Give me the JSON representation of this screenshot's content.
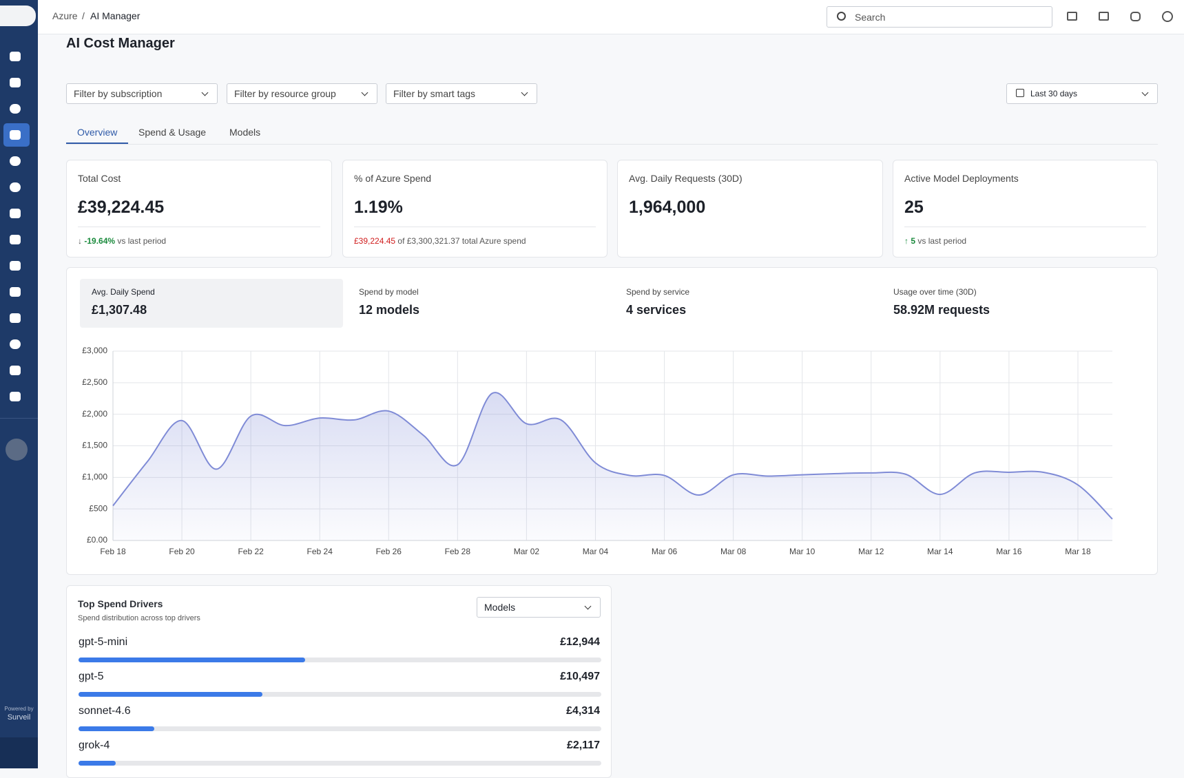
{
  "header": {
    "breadcrumb_root": "Azure",
    "breadcrumb_sep": "/",
    "breadcrumb_current": "AI Manager",
    "search_placeholder": "Search"
  },
  "sidebar": {
    "powered_by": "Powered by",
    "brand": "Surveil"
  },
  "page_title": "AI Cost Manager",
  "filters": [
    "Filter by subscription",
    "Filter by resource group",
    "Filter by smart tags"
  ],
  "date_range": "Last 30 days",
  "tabs": [
    "Overview",
    "Spend & Usage",
    "Models"
  ],
  "kpis": [
    {
      "label": "Total Cost",
      "value": "£39,224.45",
      "change": "-19.64%",
      "note": "vs last period"
    },
    {
      "label": "% of Azure Spend",
      "value": "1.19%",
      "change": "£39,224.45",
      "note": "of £3,300,321.37 total Azure spend"
    },
    {
      "label": "Avg. Daily Requests (30D)",
      "value": "1,964,000"
    },
    {
      "label": "Active Model Deployments",
      "value": "25",
      "change": "5",
      "note": "vs last period"
    }
  ],
  "summary": [
    {
      "label": "Avg. Daily Spend",
      "value": "£1,307.48"
    },
    {
      "label": "Spend by model",
      "value": "12 models"
    },
    {
      "label": "Spend by service",
      "value": "4 services"
    },
    {
      "label": "Usage over time (30D)",
      "value": "58.92M requests"
    }
  ],
  "chart_data": {
    "type": "area",
    "color": "#7f8bd6",
    "grid": true,
    "categories": [
      "Feb 18",
      null,
      "Feb 20",
      null,
      "Feb 22",
      null,
      "Feb 24",
      null,
      "Feb 26",
      null,
      "Feb 28",
      null,
      "Mar 02",
      null,
      "Mar 04",
      null,
      "Mar 06",
      null,
      "Mar 08",
      null,
      "Mar 10",
      null,
      "Mar 12",
      null,
      "Mar 14",
      null,
      "Mar 16",
      null,
      "Mar 18",
      null
    ],
    "values": [
      550,
      1250,
      1900,
      1130,
      1970,
      1820,
      1940,
      1910,
      2050,
      1670,
      1200,
      2330,
      1850,
      1910,
      1230,
      1030,
      1030,
      720,
      1040,
      1020,
      1040,
      1060,
      1070,
      1050,
      730,
      1070,
      1080,
      1080,
      880,
      340
    ],
    "ylim": [
      0,
      3000
    ],
    "yticks": [
      {
        "value": 0,
        "label": "£0.00"
      },
      {
        "value": 500,
        "label": "£500"
      },
      {
        "value": 1000,
        "label": "£1,000"
      },
      {
        "value": 1500,
        "label": "£1,500"
      },
      {
        "value": 2000,
        "label": "£2,000"
      },
      {
        "value": 2500,
        "label": "£2,500"
      },
      {
        "value": 3000,
        "label": "£3,000"
      }
    ]
  },
  "drivers": {
    "title": "Top Spend Drivers",
    "subtitle": "Spend distribution across top drivers",
    "selector": "Models",
    "names": [
      "gpt-5-mini",
      "gpt-5",
      "sonnet-4.6",
      "grok-4"
    ],
    "values": [
      12944,
      10497,
      4314,
      2117
    ],
    "value_labels": [
      "£12,944",
      "£10,497",
      "£4,314",
      "£2,117"
    ]
  }
}
